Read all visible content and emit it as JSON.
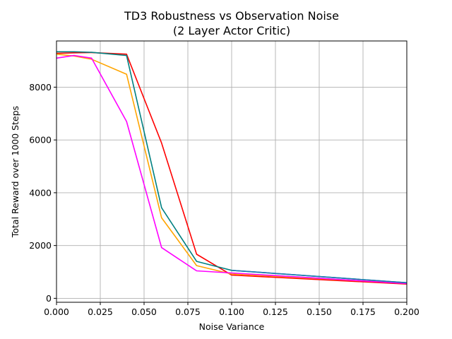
{
  "chart_data": {
    "type": "line",
    "title": [
      "TD3 Robustness vs Observation Noise",
      "(2 Layer Actor Critic)"
    ],
    "xlabel": "Noise Variance",
    "ylabel": "Total Reward over 1000 Steps",
    "xlim": [
      0.0,
      0.2
    ],
    "ylim": [
      -150,
      9750
    ],
    "x_ticks": [
      0.0,
      0.025,
      0.05,
      0.075,
      0.1,
      0.125,
      0.15,
      0.175,
      0.2
    ],
    "x_tick_labels": [
      "0.000",
      "0.025",
      "0.050",
      "0.075",
      "0.100",
      "0.125",
      "0.150",
      "0.175",
      "0.200"
    ],
    "y_ticks": [
      0,
      2000,
      4000,
      6000,
      8000
    ],
    "y_tick_labels": [
      "0",
      "2000",
      "4000",
      "6000",
      "8000"
    ],
    "grid": true,
    "series": [
      {
        "color": "#ff0000",
        "x": [
          0.0,
          0.01,
          0.02,
          0.04,
          0.06,
          0.08,
          0.1,
          0.2
        ],
        "y": [
          9280,
          9300,
          9310,
          9250,
          5880,
          1670,
          880,
          540
        ]
      },
      {
        "color": "#ffa500",
        "x": [
          0.0,
          0.01,
          0.02,
          0.04,
          0.06,
          0.08,
          0.1,
          0.2
        ],
        "y": [
          9250,
          9180,
          9060,
          8490,
          3050,
          1240,
          920,
          570
        ]
      },
      {
        "color": "#ff00ff",
        "x": [
          0.0,
          0.01,
          0.02,
          0.04,
          0.06,
          0.08,
          0.1,
          0.2
        ],
        "y": [
          9100,
          9200,
          9100,
          6700,
          1920,
          1040,
          960,
          560
        ]
      },
      {
        "color": "#008080",
        "x": [
          0.0,
          0.01,
          0.02,
          0.04,
          0.06,
          0.08,
          0.1,
          0.2
        ],
        "y": [
          9340,
          9340,
          9320,
          9200,
          3430,
          1400,
          1060,
          590
        ]
      },
      {
        "color": "#1f77b4",
        "x": [
          0.1,
          0.2
        ],
        "y": [
          1060,
          590
        ]
      }
    ]
  }
}
